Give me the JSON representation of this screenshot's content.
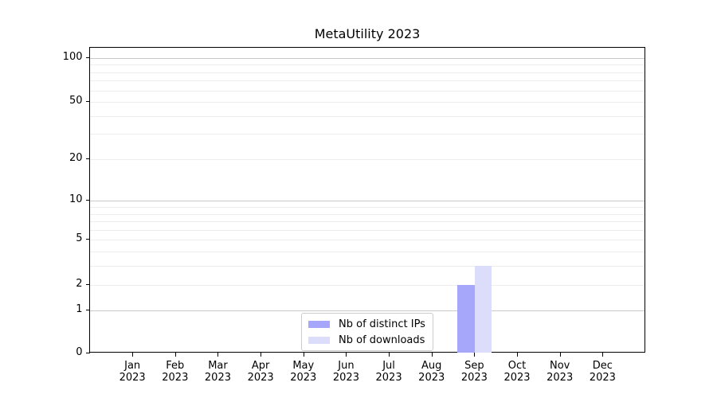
{
  "chart_data": {
    "type": "bar",
    "title": "MetaUtility 2023",
    "categories": [
      "Jan 2023",
      "Feb 2023",
      "Mar 2023",
      "Apr 2023",
      "May 2023",
      "Jun 2023",
      "Jul 2023",
      "Aug 2023",
      "Sep 2023",
      "Oct 2023",
      "Nov 2023",
      "Dec 2023"
    ],
    "series": [
      {
        "name": "Nb of distinct IPs",
        "color": "#a6a6fa",
        "values": [
          0,
          0,
          0,
          0,
          0,
          0,
          0,
          0,
          2,
          0,
          0,
          0
        ]
      },
      {
        "name": "Nb of downloads",
        "color": "#dcdcfb",
        "values": [
          0,
          0,
          0,
          0,
          0,
          0,
          0,
          0,
          3,
          0,
          0,
          0
        ]
      }
    ],
    "y_axis": {
      "scale": "log1p",
      "tick_labels": [
        0,
        1,
        2,
        5,
        10,
        20,
        50,
        100
      ],
      "major_gridlines": [
        1,
        10,
        100
      ],
      "minor_gridlines": [
        2,
        3,
        4,
        5,
        6,
        7,
        8,
        9,
        20,
        30,
        40,
        50,
        60,
        70,
        80,
        90
      ],
      "ylim": [
        0,
        113
      ]
    },
    "xlabel": "",
    "ylabel": "",
    "legend": {
      "position": "lower center"
    },
    "grid": true
  },
  "colors": {
    "background": "#ffffff",
    "axis": "#000000",
    "major_grid": "#c9c9c9",
    "minor_grid": "#ededed",
    "text": "#000000"
  }
}
